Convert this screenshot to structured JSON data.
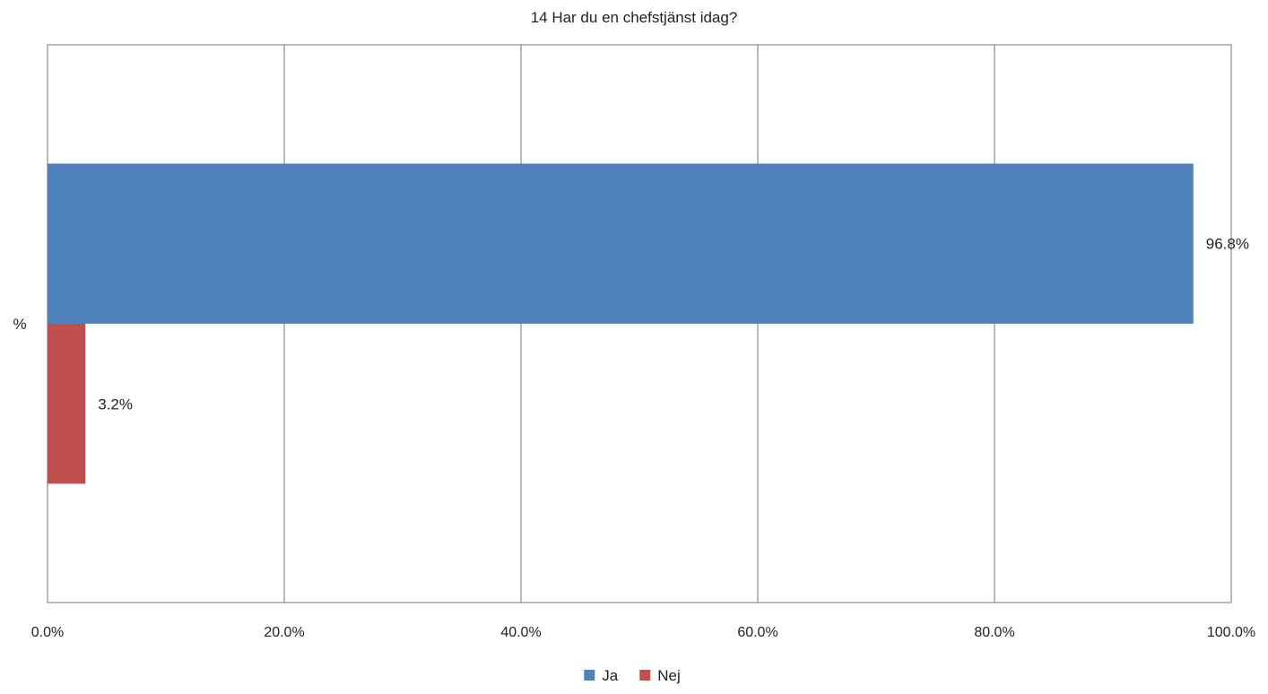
{
  "chart_data": {
    "type": "bar",
    "orientation": "horizontal",
    "title": "14 Har du en chefstjänst idag?",
    "categories": [
      "%"
    ],
    "series": [
      {
        "name": "Ja",
        "values": [
          96.8
        ],
        "data_labels": [
          "96.8%"
        ],
        "color": "#4f81bd"
      },
      {
        "name": "Nej",
        "values": [
          3.2
        ],
        "data_labels": [
          "3.2%"
        ],
        "color": "#c0504d"
      }
    ],
    "xlim": [
      0,
      100
    ],
    "x_ticks": [
      "0.0%",
      "20.0%",
      "40.0%",
      "60.0%",
      "80.0%",
      "100.0%"
    ],
    "grid": true,
    "legend_position": "bottom"
  }
}
